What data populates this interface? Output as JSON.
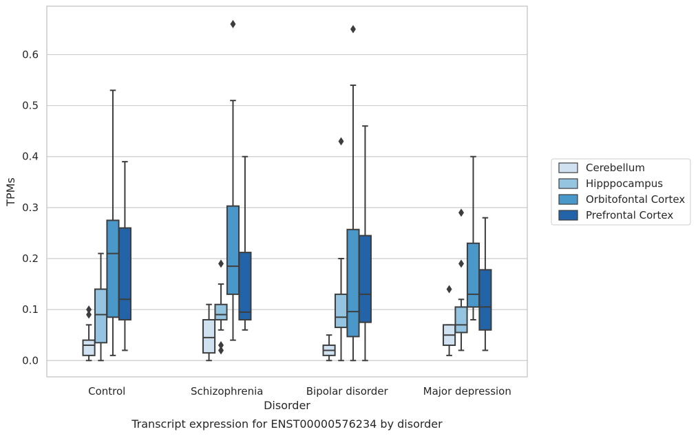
{
  "caption": "Transcript expression for ENST00000576234 by disorder",
  "chart_data": {
    "type": "box",
    "xlabel": "Disorder",
    "ylabel": "TPMs",
    "ylim": [
      -0.032,
      0.695
    ],
    "yticks": [
      "0.0",
      "0.1",
      "0.2",
      "0.3",
      "0.4",
      "0.5",
      "0.6"
    ],
    "categories": [
      "Control",
      "Schizophrenia",
      "Bipolar disorder",
      "Major depression"
    ],
    "grid": true,
    "legend_position": "right",
    "series": [
      {
        "name": "Cerebellum",
        "color": "#d0e1f2",
        "boxes": [
          {
            "low": 0.0,
            "q1": 0.01,
            "median": 0.03,
            "q3": 0.04,
            "high": 0.07,
            "outliers": [
              0.09,
              0.1
            ]
          },
          {
            "low": 0.0,
            "q1": 0.015,
            "median": 0.045,
            "q3": 0.08,
            "high": 0.11,
            "outliers": []
          },
          {
            "low": 0.0,
            "q1": 0.01,
            "median": 0.02,
            "q3": 0.03,
            "high": 0.05,
            "outliers": []
          },
          {
            "low": 0.01,
            "q1": 0.03,
            "median": 0.05,
            "q3": 0.07,
            "high": 0.07,
            "outliers": [
              0.14
            ]
          }
        ]
      },
      {
        "name": "Hipppocampus",
        "color": "#94c4df",
        "boxes": [
          {
            "low": 0.0,
            "q1": 0.035,
            "median": 0.09,
            "q3": 0.14,
            "high": 0.21,
            "outliers": []
          },
          {
            "low": 0.06,
            "q1": 0.08,
            "median": 0.09,
            "q3": 0.11,
            "high": 0.15,
            "outliers": [
              0.02,
              0.03,
              0.19
            ]
          },
          {
            "low": 0.0,
            "q1": 0.065,
            "median": 0.085,
            "q3": 0.13,
            "high": 0.2,
            "outliers": [
              0.43
            ]
          },
          {
            "low": 0.02,
            "q1": 0.055,
            "median": 0.07,
            "q3": 0.105,
            "high": 0.12,
            "outliers": [
              0.19,
              0.29
            ]
          }
        ]
      },
      {
        "name": "Orbitofontal Cortex",
        "color": "#4a98c9",
        "boxes": [
          {
            "low": 0.01,
            "q1": 0.085,
            "median": 0.21,
            "q3": 0.275,
            "high": 0.53,
            "outliers": []
          },
          {
            "low": 0.04,
            "q1": 0.13,
            "median": 0.185,
            "q3": 0.303,
            "high": 0.51,
            "outliers": [
              0.66
            ]
          },
          {
            "low": 0.0,
            "q1": 0.047,
            "median": 0.096,
            "q3": 0.257,
            "high": 0.54,
            "outliers": [
              0.65
            ]
          },
          {
            "low": 0.08,
            "q1": 0.105,
            "median": 0.13,
            "q3": 0.23,
            "high": 0.4,
            "outliers": []
          }
        ]
      },
      {
        "name": "Prefrontal Cortex",
        "color": "#2264a7",
        "boxes": [
          {
            "low": 0.02,
            "q1": 0.08,
            "median": 0.12,
            "q3": 0.26,
            "high": 0.39,
            "outliers": []
          },
          {
            "low": 0.06,
            "q1": 0.08,
            "median": 0.095,
            "q3": 0.212,
            "high": 0.4,
            "outliers": []
          },
          {
            "low": 0.0,
            "q1": 0.075,
            "median": 0.13,
            "q3": 0.245,
            "high": 0.46,
            "outliers": []
          },
          {
            "low": 0.02,
            "q1": 0.06,
            "median": 0.105,
            "q3": 0.178,
            "high": 0.28,
            "outliers": []
          }
        ]
      }
    ]
  }
}
